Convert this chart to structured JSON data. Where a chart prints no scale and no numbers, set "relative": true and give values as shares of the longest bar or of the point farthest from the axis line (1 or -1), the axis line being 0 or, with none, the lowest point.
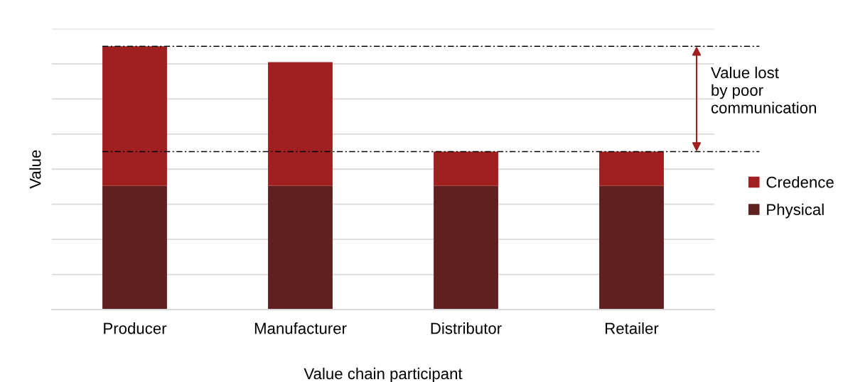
{
  "chart_data": {
    "type": "bar",
    "stacked": true,
    "relative": true,
    "xlabel": "Value chain participant",
    "ylabel": "Value",
    "categories": [
      "Producer",
      "Manufacturer",
      "Distributor",
      "Retailer"
    ],
    "series": [
      {
        "name": "Physical",
        "color": "#612020",
        "values": [
          0.47,
          0.47,
          0.47,
          0.47
        ]
      },
      {
        "name": "Credence",
        "color": "#a01f20",
        "values": [
          0.53,
          0.47,
          0.13,
          0.13
        ]
      }
    ],
    "grid": "y",
    "legend": "right",
    "tick_labels": "x",
    "ref_lines": [
      {
        "axis": "y",
        "value": 1,
        "color": "#000000",
        "line_style": "dashdot"
      },
      {
        "axis": "y",
        "value": 0.6,
        "color": "#000000",
        "line_style": "dashdot"
      }
    ],
    "annotations": [
      "Value lost\nby poor\ncommunication"
    ]
  }
}
